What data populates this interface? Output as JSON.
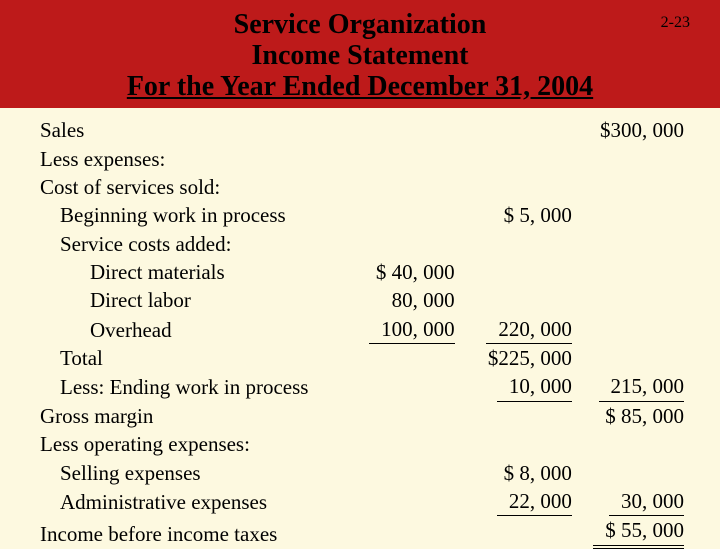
{
  "header": {
    "line1": "Service Organization",
    "line2": "Income Statement",
    "line3": "For the Year Ended December 31, 2004",
    "page_number": "2-23",
    "bg_color": "#bd1a1a"
  },
  "body_bg": "#fdf9e0",
  "rows": [
    {
      "label": "Sales",
      "indent": 0,
      "a": "",
      "b": "",
      "c": "$300, 000"
    },
    {
      "label": "Less expenses:",
      "indent": 0,
      "a": "",
      "b": "",
      "c": ""
    },
    {
      "label": "Cost of services sold:",
      "indent": 0,
      "a": "",
      "b": "",
      "c": ""
    },
    {
      "label": "Beginning work in process",
      "indent": 1,
      "a": "",
      "b": "$   5, 000",
      "c": ""
    },
    {
      "label": "Service costs added:",
      "indent": 1,
      "a": "",
      "b": "",
      "c": ""
    },
    {
      "label": "Direct materials",
      "indent": 2,
      "a": "$  40, 000",
      "b": "",
      "c": ""
    },
    {
      "label": "Direct labor",
      "indent": 2,
      "a": "80, 000",
      "b": "",
      "c": ""
    },
    {
      "label": "Overhead",
      "indent": 2,
      "a": "100, 000",
      "b": "220, 000",
      "c": "",
      "a_underline": true,
      "b_underline": true
    },
    {
      "label": "Total",
      "indent": 1,
      "a": "",
      "b": "$225, 000",
      "c": ""
    },
    {
      "label": "Less:  Ending work in process",
      "indent": 1,
      "a": "",
      "b": "10, 000",
      "c": "215, 000",
      "b_underline": true,
      "c_underline": true
    },
    {
      "label": "Gross margin",
      "indent": 0,
      "a": "",
      "b": "",
      "c": "$  85, 000"
    },
    {
      "label": "Less operating expenses:",
      "indent": 0,
      "a": "",
      "b": "",
      "c": ""
    },
    {
      "label": "Selling expenses",
      "indent": 1,
      "a": "",
      "b": "$   8, 000",
      "c": ""
    },
    {
      "label": "Administrative expenses",
      "indent": 1,
      "a": "",
      "b": "22, 000",
      "c": "30, 000",
      "b_underline": true,
      "c_underline": true
    },
    {
      "label": "Income before income taxes",
      "indent": 0,
      "a": "",
      "b": "",
      "c": "$  55, 000",
      "c_dbl": true
    }
  ]
}
